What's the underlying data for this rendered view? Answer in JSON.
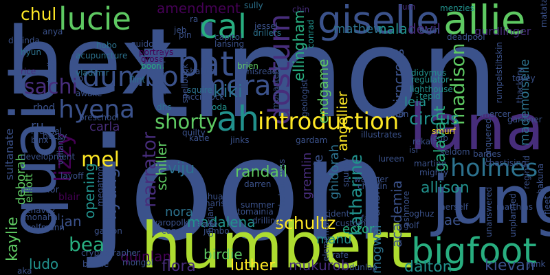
{
  "palette": {
    "background": "#000000",
    "dark_purple": "#440154",
    "purple": "#472d7b",
    "indigo": "#3b528b",
    "blue": "#2c728e",
    "teal": "#21918c",
    "green": "#28ae80",
    "light_green": "#5ec962",
    "lime": "#addc30",
    "yellow": "#fde725"
  },
  "words": [
    {
      "text": "joon",
      "color": "#3b528b",
      "orientation": "horizontal"
    },
    {
      "text": "timon",
      "color": "#3b528b",
      "orientation": "horizontal"
    },
    {
      "text": "hex",
      "color": "#3b528b",
      "orientation": "horizontal"
    },
    {
      "text": "humbert",
      "color": "#addc30",
      "orientation": "horizontal"
    },
    {
      "text": "lana",
      "color": "#472d7b",
      "orientation": "horizontal"
    },
    {
      "text": "jung",
      "color": "#3b528b",
      "orientation": "horizontal"
    },
    {
      "text": "quaid",
      "color": "#3b528b",
      "orientation": "vertical"
    },
    {
      "text": "giselle",
      "color": "#3b528b",
      "orientation": "horizontal"
    },
    {
      "text": "allie",
      "color": "#5ec962",
      "orientation": "horizontal"
    },
    {
      "text": "lucie",
      "color": "#5ec962",
      "orientation": "horizontal"
    },
    {
      "text": "bigfoot",
      "color": "#28ae80",
      "orientation": "horizontal"
    },
    {
      "text": "cal",
      "color": "#28ae80",
      "orientation": "horizontal"
    },
    {
      "text": "pat",
      "color": "#3b528b",
      "orientation": "horizontal"
    },
    {
      "text": "dostum",
      "color": "#472d7b",
      "orientation": "vertical"
    },
    {
      "text": "ah",
      "color": "#21918c",
      "orientation": "horizontal"
    },
    {
      "text": "dumbo",
      "color": "#3b528b",
      "orientation": "horizontal"
    },
    {
      "text": "mera",
      "color": "#3b528b",
      "orientation": "horizontal"
    },
    {
      "text": "hyena",
      "color": "#3b528b",
      "orientation": "horizontal"
    },
    {
      "text": "introduction",
      "color": "#fde725",
      "orientation": "horizontal"
    },
    {
      "text": "holmes",
      "color": "#2c728e",
      "orientation": "horizontal"
    },
    {
      "text": "sachi",
      "color": "#472d7b",
      "orientation": "horizontal"
    },
    {
      "text": "lizzy",
      "color": "#440154",
      "orientation": "vertical"
    },
    {
      "text": "shorty",
      "color": "#5ec962",
      "orientation": "horizontal"
    },
    {
      "text": "kiki",
      "color": "#2c728e",
      "orientation": "horizontal"
    },
    {
      "text": "mel",
      "color": "#fde725",
      "orientation": "horizontal"
    },
    {
      "text": "narrator",
      "color": "#472d7b",
      "orientation": "vertical"
    },
    {
      "text": "kyung",
      "color": "#3b528b",
      "orientation": "vertical"
    },
    {
      "text": "bea",
      "color": "#28ae80",
      "orientation": "horizontal"
    },
    {
      "text": "chul",
      "color": "#fde725",
      "orientation": "horizontal"
    },
    {
      "text": "amendment",
      "color": "#440154",
      "orientation": "horizontal"
    },
    {
      "text": "ellingham",
      "color": "#28ae80",
      "orientation": "vertical"
    },
    {
      "text": "mathew",
      "color": "#2c728e",
      "orientation": "horizontal"
    },
    {
      "text": "nala",
      "color": "#21918c",
      "orientation": "horizontal"
    },
    {
      "text": "devil",
      "color": "#472d7b",
      "orientation": "horizontal"
    },
    {
      "text": "gurdlinger",
      "color": "#472d7b",
      "orientation": "horizontal"
    },
    {
      "text": "endgame",
      "color": "#5ec962",
      "orientation": "vertical"
    },
    {
      "text": "cairncross",
      "color": "#3b528b",
      "orientation": "vertical"
    },
    {
      "text": "leia",
      "color": "#21918c",
      "orientation": "horizontal"
    },
    {
      "text": "madison",
      "color": "#5ec962",
      "orientation": "vertical"
    },
    {
      "text": "angellier",
      "color": "#fde725",
      "orientation": "vertical"
    },
    {
      "text": "circus",
      "color": "#21918c",
      "orientation": "horizontal"
    },
    {
      "text": "galavant",
      "color": "#28ae80",
      "orientation": "vertical"
    },
    {
      "text": "mademoiselle",
      "color": "#2c728e",
      "orientation": "vertical"
    },
    {
      "text": "carla",
      "color": "#472d7b",
      "orientation": "horizontal"
    },
    {
      "text": "viju",
      "color": "#2c728e",
      "orientation": "horizontal"
    },
    {
      "text": "schiller",
      "color": "#5ec962",
      "orientation": "vertical"
    },
    {
      "text": "sultanate",
      "color": "#3b528b",
      "orientation": "vertical"
    },
    {
      "text": "deborah",
      "color": "#5ec962",
      "orientation": "vertical"
    },
    {
      "text": "elliott",
      "color": "#5ec962",
      "orientation": "vertical"
    },
    {
      "text": "kaylie",
      "color": "#5ec962",
      "orientation": "vertical"
    },
    {
      "text": "opening",
      "color": "#21918c",
      "orientation": "vertical"
    },
    {
      "text": "randall",
      "color": "#5ec962",
      "orientation": "horizontal"
    },
    {
      "text": "katharine",
      "color": "#21918c",
      "orientation": "vertical"
    },
    {
      "text": "academia",
      "color": "#3b528b",
      "orientation": "vertical"
    },
    {
      "text": "allison",
      "color": "#21918c",
      "orientation": "horizontal"
    },
    {
      "text": "schultz",
      "color": "#fde725",
      "orientation": "horizontal"
    },
    {
      "text": "nora",
      "color": "#2c728e",
      "orientation": "horizontal"
    },
    {
      "text": "madalena",
      "color": "#21918c",
      "orientation": "horizontal"
    },
    {
      "text": "manu",
      "color": "#21918c",
      "orientation": "horizontal"
    },
    {
      "text": "ector",
      "color": "#28ae80",
      "orientation": "horizontal"
    },
    {
      "text": "tae",
      "color": "#3b528b",
      "orientation": "horizontal"
    },
    {
      "text": "jan",
      "color": "#3b528b",
      "orientation": "horizontal"
    },
    {
      "text": "ludo",
      "color": "#21918c",
      "orientation": "horizontal"
    },
    {
      "text": "quinlan",
      "color": "#440154",
      "orientation": "horizontal"
    },
    {
      "text": "flora",
      "color": "#472d7b",
      "orientation": "horizontal"
    },
    {
      "text": "birdie",
      "color": "#5ec962",
      "orientation": "horizontal"
    },
    {
      "text": "luther",
      "color": "#fde725",
      "orientation": "horizontal"
    },
    {
      "text": "mukurob",
      "color": "#472d7b",
      "orientation": "horizontal"
    },
    {
      "text": "dalton",
      "color": "#21918c",
      "orientation": "horizontal"
    },
    {
      "text": "kievan",
      "color": "#3b528b",
      "orientation": "horizontal"
    },
    {
      "text": "mogwai",
      "color": "#2c728e",
      "orientation": "vertical"
    },
    {
      "text": "anshel",
      "color": "#3b528b",
      "orientation": "vertical"
    },
    {
      "text": "gremlin",
      "color": "#472d7b",
      "orientation": "vertical"
    },
    {
      "text": "mantle",
      "color": "#3b528b",
      "orientation": "vertical"
    },
    {
      "text": "ghidorah",
      "color": "#2c728e",
      "orientation": "vertical"
    },
    {
      "text": "ru",
      "color": "#3b528b",
      "orientation": "horizontal"
    },
    {
      "text": "rhod",
      "color": "#3b528b",
      "orientation": "horizontal"
    },
    {
      "text": "blair",
      "color": "#440154",
      "orientation": "horizontal"
    },
    {
      "text": "warrior",
      "color": "#3b528b",
      "orientation": "horizontal"
    },
    {
      "text": "preschool",
      "color": "#3b528b",
      "orientation": "horizontal"
    },
    {
      "text": "development",
      "color": "#3b528b",
      "orientation": "horizontal"
    },
    {
      "text": "vladimir",
      "color": "#2c728e",
      "orientation": "horizontal"
    },
    {
      "text": "acupuncture",
      "color": "#2c728e",
      "orientation": "horizontal"
    },
    {
      "text": "hobo",
      "color": "#2c728e",
      "orientation": "horizontal"
    },
    {
      "text": "hyun",
      "color": "#2c728e",
      "orientation": "horizontal"
    },
    {
      "text": "rice",
      "color": "#472d7b",
      "orientation": "horizontal"
    },
    {
      "text": "portrays",
      "color": "#440154",
      "orientation": "horizontal"
    },
    {
      "text": "grose",
      "color": "#440154",
      "orientation": "horizontal"
    },
    {
      "text": "boom",
      "color": "#28ae80",
      "orientation": "horizontal"
    },
    {
      "text": "flint",
      "color": "#2c728e",
      "orientation": "horizontal"
    },
    {
      "text": "dhs",
      "color": "#2c728e",
      "orientation": "horizontal"
    },
    {
      "text": "oda",
      "color": "#21918c",
      "orientation": "horizontal"
    },
    {
      "text": "squire",
      "color": "#2c728e",
      "orientation": "horizontal"
    },
    {
      "text": "brien",
      "color": "#5ec962",
      "orientation": "horizontal"
    },
    {
      "text": "capitol",
      "color": "#3b528b",
      "orientation": "horizontal"
    },
    {
      "text": "lansing",
      "color": "#3b528b",
      "orientation": "horizontal"
    },
    {
      "text": "jessel",
      "color": "#3b528b",
      "orientation": "horizontal"
    },
    {
      "text": "drillers",
      "color": "#2c728e",
      "orientation": "horizontal"
    },
    {
      "text": "conrad",
      "color": "#21918c",
      "orientation": "vertical"
    },
    {
      "text": "chin",
      "color": "#472d7b",
      "orientation": "horizontal"
    },
    {
      "text": "sully",
      "color": "#2c728e",
      "orientation": "horizontal"
    },
    {
      "text": "rum",
      "color": "#472d7b",
      "orientation": "horizontal"
    },
    {
      "text": "menzies",
      "color": "#21918c",
      "orientation": "horizontal"
    },
    {
      "text": "elgin",
      "color": "#3b528b",
      "orientation": "horizontal"
    },
    {
      "text": "deadpool",
      "color": "#3b528b",
      "orientation": "horizontal"
    },
    {
      "text": "didymus",
      "color": "#21918c",
      "orientation": "horizontal"
    },
    {
      "text": "regulator",
      "color": "#21918c",
      "orientation": "horizontal"
    },
    {
      "text": "lighthouse",
      "color": "#21918c",
      "orientation": "horizontal"
    },
    {
      "text": "tepid",
      "color": "#21918c",
      "orientation": "horizontal"
    },
    {
      "text": "barren",
      "color": "#3b528b",
      "orientation": "horizontal"
    },
    {
      "text": "smurf",
      "color": "#fde725",
      "orientation": "horizontal"
    },
    {
      "text": "cub",
      "color": "#3b528b",
      "orientation": "horizontal"
    },
    {
      "text": "rekall",
      "color": "#3b528b",
      "orientation": "horizontal"
    },
    {
      "text": "isi",
      "color": "#3b528b",
      "orientation": "horizontal"
    },
    {
      "text": "illustrates",
      "color": "#3b528b",
      "orientation": "horizontal"
    },
    {
      "text": "geologist",
      "color": "#3b528b",
      "orientation": "vertical"
    },
    {
      "text": "monastery",
      "color": "#3b528b",
      "orientation": "vertical"
    },
    {
      "text": "misreads",
      "color": "#3b528b",
      "orientation": "horizontal"
    },
    {
      "text": "shakira",
      "color": "#3b528b",
      "orientation": "horizontal"
    },
    {
      "text": "spellbook",
      "color": "#3b528b",
      "orientation": "vertical"
    },
    {
      "text": "mccintock",
      "color": "#3b528b",
      "orientation": "horizontal"
    },
    {
      "text": "cryptography",
      "color": "#3b528b",
      "orientation": "vertical"
    },
    {
      "text": "jeb",
      "color": "#3b528b",
      "orientation": "horizontal"
    },
    {
      "text": "pin",
      "color": "#3b528b",
      "orientation": "horizontal"
    },
    {
      "text": "ra",
      "color": "#3b528b",
      "orientation": "horizontal"
    },
    {
      "text": "guido",
      "color": "#3b528b",
      "orientation": "horizontal"
    },
    {
      "text": "dorinda",
      "color": "#3b528b",
      "orientation": "horizontal"
    },
    {
      "text": "binx",
      "color": "#3b528b",
      "orientation": "horizontal"
    },
    {
      "text": "mendel",
      "color": "#3b528b",
      "orientation": "horizontal"
    },
    {
      "text": "bucky",
      "color": "#3b528b",
      "orientation": "horizontal"
    },
    {
      "text": "layoff",
      "color": "#3b528b",
      "orientation": "horizontal"
    },
    {
      "text": "chavez",
      "color": "#3b528b",
      "orientation": "horizontal"
    },
    {
      "text": "monahal",
      "color": "#3b528b",
      "orientation": "horizontal"
    },
    {
      "text": "wolfmann",
      "color": "#3b528b",
      "orientation": "horizontal"
    },
    {
      "text": "bessie",
      "color": "#3b528b",
      "orientation": "horizontal"
    },
    {
      "text": "gaston",
      "color": "#3b528b",
      "orientation": "horizontal"
    },
    {
      "text": "mongol",
      "color": "#3b528b",
      "orientation": "horizontal"
    },
    {
      "text": "cryptographer",
      "color": "#3b528b",
      "orientation": "horizontal"
    },
    {
      "text": "aka",
      "color": "#3b528b",
      "orientation": "horizontal"
    },
    {
      "text": "yaropolk",
      "color": "#3b528b",
      "orientation": "horizontal"
    },
    {
      "text": "conor",
      "color": "#3b528b",
      "orientation": "horizontal"
    },
    {
      "text": "slade",
      "color": "#3b528b",
      "orientation": "horizontal"
    },
    {
      "text": "joshua",
      "color": "#3b528b",
      "orientation": "horizontal"
    },
    {
      "text": "narissa",
      "color": "#3b528b",
      "orientation": "horizontal"
    },
    {
      "text": "darren",
      "color": "#3b528b",
      "orientation": "horizontal"
    },
    {
      "text": "tomainia",
      "color": "#3b528b",
      "orientation": "horizontal"
    },
    {
      "text": "drilling",
      "color": "#3b528b",
      "orientation": "horizontal"
    },
    {
      "text": "trident",
      "color": "#3b528b",
      "orientation": "horizontal"
    },
    {
      "text": "custom",
      "color": "#3b528b",
      "orientation": "horizontal"
    },
    {
      "text": "elementary",
      "color": "#3b528b",
      "orientation": "vertical"
    },
    {
      "text": "rafe",
      "color": "#3b528b",
      "orientation": "horizontal"
    },
    {
      "text": "dunlap",
      "color": "#3b528b",
      "orientation": "horizontal"
    },
    {
      "text": "helpfulness",
      "color": "#3b528b",
      "orientation": "vertical"
    },
    {
      "text": "fang",
      "color": "#3b528b",
      "orientation": "horizontal"
    },
    {
      "text": "golf",
      "color": "#3b528b",
      "orientation": "horizontal"
    },
    {
      "text": "oghuz",
      "color": "#3b528b",
      "orientation": "horizontal"
    },
    {
      "text": "wassner",
      "color": "#3b528b",
      "orientation": "horizontal"
    },
    {
      "text": "chaplin",
      "color": "#3b528b",
      "orientation": "horizontal"
    },
    {
      "text": "spunky",
      "color": "#3b528b",
      "orientation": "vertical"
    },
    {
      "text": "mighty",
      "color": "#3b528b",
      "orientation": "horizontal"
    },
    {
      "text": "martine",
      "color": "#3b528b",
      "orientation": "horizontal"
    },
    {
      "text": "unanswered",
      "color": "#3b528b",
      "orientation": "vertical"
    },
    {
      "text": "unplanned",
      "color": "#3b528b",
      "orientation": "vertical"
    },
    {
      "text": "matthias",
      "color": "#3b528b",
      "orientation": "horizontal"
    },
    {
      "text": "chastising",
      "color": "#3b528b",
      "orientation": "horizontal"
    },
    {
      "text": "gardiner",
      "color": "#3b528b",
      "orientation": "horizontal"
    },
    {
      "text": "barnes",
      "color": "#3b528b",
      "orientation": "horizontal"
    },
    {
      "text": "conquered",
      "color": "#3b528b",
      "orientation": "vertical"
    },
    {
      "text": "reginald",
      "color": "#3b528b",
      "orientation": "vertical"
    },
    {
      "text": "hakuna",
      "color": "#3b528b",
      "orientation": "vertical"
    },
    {
      "text": "matata",
      "color": "#3b528b",
      "orientation": "vertical"
    },
    {
      "text": "fleet",
      "color": "#3b528b",
      "orientation": "vertical"
    },
    {
      "text": "junk",
      "color": "#3b528b",
      "orientation": "horizontal"
    },
    {
      "text": "rumpelstiltskin",
      "color": "#3b528b",
      "orientation": "vertical"
    },
    {
      "text": "thackery",
      "color": "#3b528b",
      "orientation": "vertical"
    },
    {
      "text": "anya",
      "color": "#3b528b",
      "orientation": "horizontal"
    },
    {
      "text": "bledley",
      "color": "#3b528b",
      "orientation": "vertical"
    },
    {
      "text": "valiant",
      "color": "#3b528b",
      "orientation": "vertical"
    },
    {
      "text": "megatron",
      "color": "#3b528b",
      "orientation": "vertical"
    },
    {
      "text": "jumbo",
      "color": "#3b528b",
      "orientation": "horizontal"
    },
    {
      "text": "summer",
      "color": "#3b528b",
      "orientation": "horizontal"
    },
    {
      "text": "charjan",
      "color": "#3b528b",
      "orientation": "vertical"
    },
    {
      "text": "ashmore",
      "color": "#3b528b",
      "orientation": "vertical"
    },
    {
      "text": "awake",
      "color": "#3b528b",
      "orientation": "horizontal"
    },
    {
      "text": "jp",
      "color": "#3b528b",
      "orientation": "horizontal"
    },
    {
      "text": "quilty",
      "color": "#3b528b",
      "orientation": "horizontal"
    },
    {
      "text": "katie",
      "color": "#3b528b",
      "orientation": "horizontal"
    },
    {
      "text": "jinks",
      "color": "#3b528b",
      "orientation": "horizontal"
    },
    {
      "text": "gardam",
      "color": "#3b528b",
      "orientation": "horizontal"
    },
    {
      "text": "lureen",
      "color": "#3b528b",
      "orientation": "horizontal"
    },
    {
      "text": "seldom",
      "color": "#3b528b",
      "orientation": "horizontal"
    },
    {
      "text": "mercer",
      "color": "#3b528b",
      "orientation": "horizontal"
    },
    {
      "text": "herself",
      "color": "#3b528b",
      "orientation": "horizontal"
    },
    {
      "text": "tovey",
      "color": "#3b528b",
      "orientation": "horizontal"
    }
  ]
}
